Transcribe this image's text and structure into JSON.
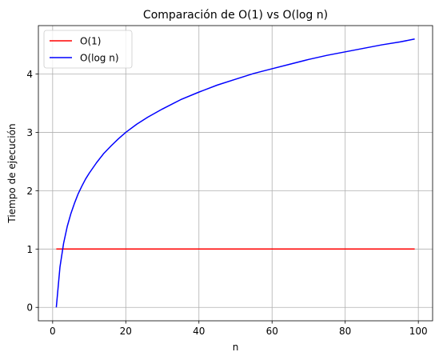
{
  "chart_data": {
    "type": "line",
    "title": "Comparación de O(1) vs O(log n)",
    "xlabel": "n",
    "ylabel": "Tiempo de ejecución",
    "xlim": [
      -3.9,
      103.9
    ],
    "ylim": [
      -0.23,
      4.83
    ],
    "xticks": [
      0,
      20,
      40,
      60,
      80,
      100
    ],
    "yticks": [
      0,
      1,
      2,
      3,
      4
    ],
    "grid": true,
    "legend_position": "top-left",
    "x": [
      1,
      2,
      3,
      4,
      5,
      6,
      7,
      8,
      9,
      10,
      12,
      14,
      16,
      18,
      20,
      23,
      26,
      30,
      35,
      40,
      45,
      50,
      55,
      60,
      65,
      70,
      75,
      80,
      85,
      90,
      95,
      99
    ],
    "series": [
      {
        "name": "O(1)",
        "color": "#ff0000",
        "values": [
          1,
          1,
          1,
          1,
          1,
          1,
          1,
          1,
          1,
          1,
          1,
          1,
          1,
          1,
          1,
          1,
          1,
          1,
          1,
          1,
          1,
          1,
          1,
          1,
          1,
          1,
          1,
          1,
          1,
          1,
          1,
          1
        ]
      },
      {
        "name": "O(log n)",
        "color": "#0000ff",
        "values": [
          0,
          0.69,
          1.1,
          1.39,
          1.61,
          1.79,
          1.95,
          2.08,
          2.2,
          2.3,
          2.48,
          2.64,
          2.77,
          2.89,
          3.0,
          3.14,
          3.26,
          3.4,
          3.56,
          3.69,
          3.81,
          3.91,
          4.01,
          4.09,
          4.17,
          4.25,
          4.32,
          4.38,
          4.44,
          4.5,
          4.55,
          4.6
        ]
      }
    ]
  }
}
